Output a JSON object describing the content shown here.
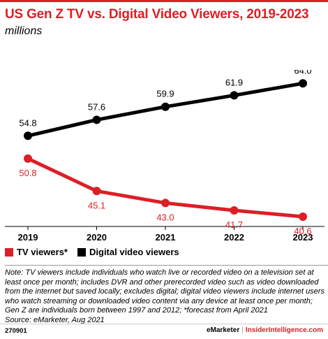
{
  "header": {
    "title": "US Gen Z TV vs. Digital Video Viewers, 2019-2023",
    "subtitle": "millions"
  },
  "colors": {
    "tv": "#dc1f26",
    "digital": "#000000",
    "accent": "#dc1f26"
  },
  "chart_data": {
    "type": "line",
    "title": "US Gen Z TV vs. Digital Video Viewers, 2019-2023",
    "subtitle": "millions",
    "categories": [
      "2019",
      "2020",
      "2021",
      "2022",
      "2023"
    ],
    "series": [
      {
        "name": "TV viewers*",
        "values": [
          50.8,
          45.1,
          43.0,
          41.7,
          40.6
        ],
        "color": "#dc1f26",
        "label_position": "below"
      },
      {
        "name": "Digital video viewers",
        "values": [
          54.8,
          57.6,
          59.9,
          61.9,
          64.0
        ],
        "color": "#000000",
        "label_position": "above"
      }
    ],
    "ylim": [
      39,
      66
    ],
    "grid": false,
    "legend": "bottom-left"
  },
  "legend": {
    "tv_label": "TV viewers*",
    "digital_label": "Digital video viewers"
  },
  "note": "Note: TV viewers include individuals who watch live or recorded video on a television set at least once per month; includes DVR and other prerecorded video such as video downloaded from the internet but saved locally; excludes digital; digital video viewers include internet users who watch streaming or downloaded video content via any device at least once per month; Gen Z are individuals born between 1997 and 2012; *forecast from April 2021",
  "source": "Source: eMarketer, Aug 2021",
  "footer": {
    "chart_id": "270901",
    "brand_a": "eMarketer",
    "separator": "|",
    "brand_b": "InsiderIntelligence.com"
  }
}
